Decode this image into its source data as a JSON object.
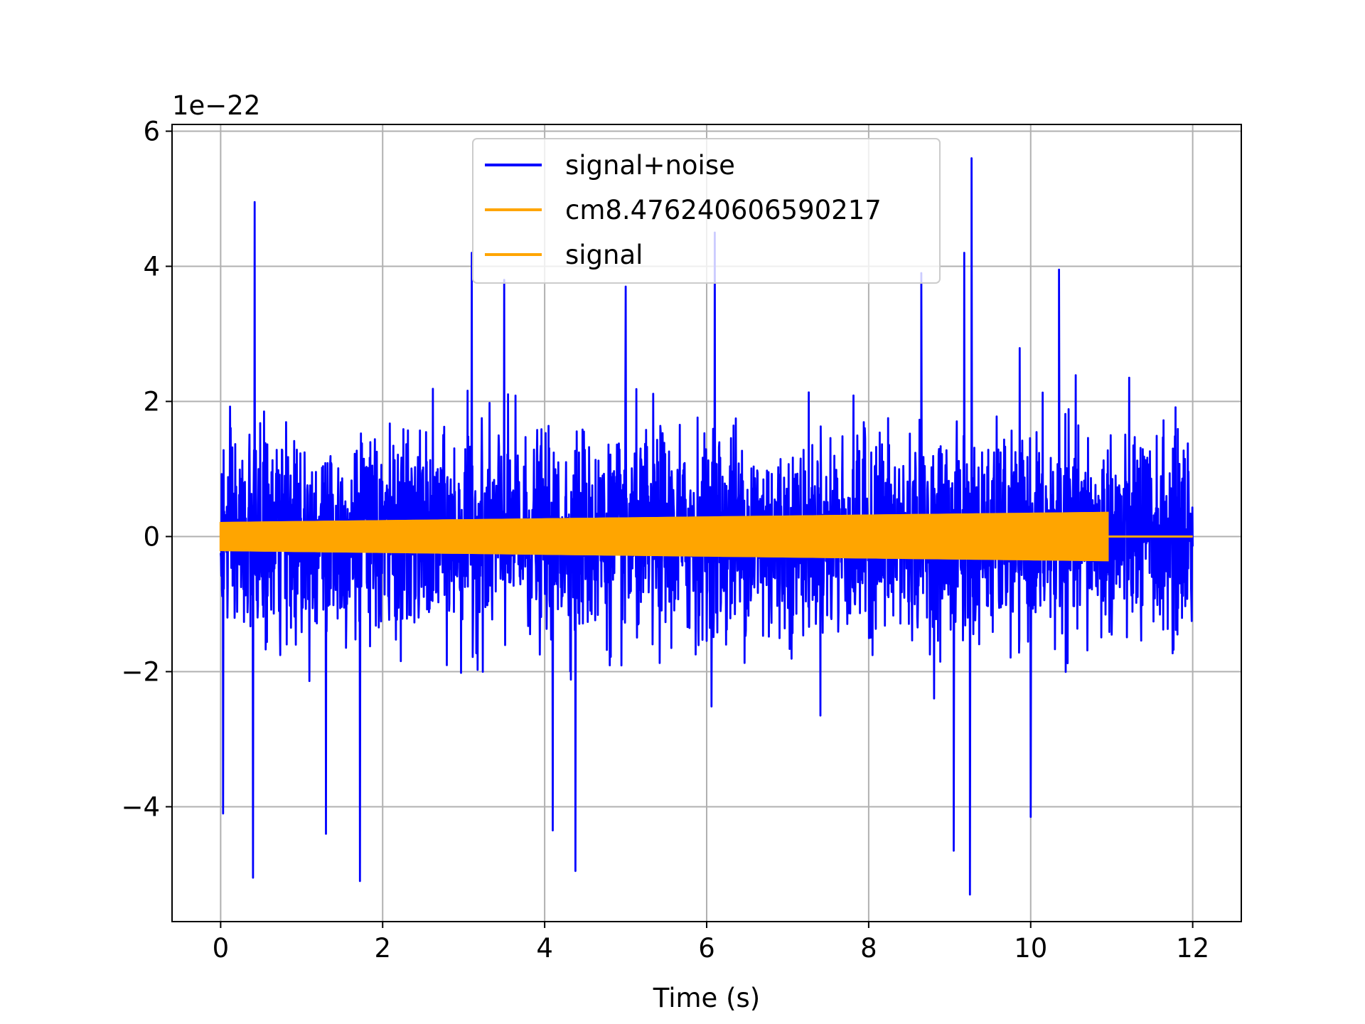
{
  "chart_data": {
    "type": "line",
    "title": "",
    "xlabel": "Time (s)",
    "ylabel": "",
    "y_offset_text": "1e−22",
    "xlim": [
      -0.6,
      12.6
    ],
    "ylim": [
      -5.7,
      6.1
    ],
    "y_scale_factor": 1e-22,
    "x_ticks": [
      0,
      2,
      4,
      6,
      8,
      10,
      12
    ],
    "x_tick_labels": [
      "0",
      "2",
      "4",
      "6",
      "8",
      "10",
      "12"
    ],
    "y_ticks": [
      -4,
      -2,
      0,
      2,
      4,
      6
    ],
    "y_tick_labels": [
      "−4",
      "−2",
      "0",
      "2",
      "4",
      "6"
    ],
    "grid": true,
    "legend_position": "upper center",
    "series": [
      {
        "name": "signal+noise",
        "color": "#0000ff",
        "kind": "noise",
        "x_range": [
          0,
          12
        ],
        "typical_amplitude": 1.3,
        "peaks": [
          {
            "x": 0.42,
            "y": 4.95
          },
          {
            "x": 0.4,
            "y": -5.05
          },
          {
            "x": 1.72,
            "y": -5.1
          },
          {
            "x": 6.1,
            "y": 4.5
          },
          {
            "x": 9.27,
            "y": 5.6
          },
          {
            "x": 9.25,
            "y": -5.3
          },
          {
            "x": 4.38,
            "y": -4.95
          },
          {
            "x": 0.03,
            "y": -4.1
          },
          {
            "x": 1.3,
            "y": -4.4
          },
          {
            "x": 4.1,
            "y": -4.35
          },
          {
            "x": 10.0,
            "y": -4.15
          },
          {
            "x": 9.05,
            "y": -4.65
          },
          {
            "x": 3.1,
            "y": 4.2
          },
          {
            "x": 9.18,
            "y": 4.2
          },
          {
            "x": 3.5,
            "y": 3.8
          },
          {
            "x": 5.0,
            "y": 3.7
          },
          {
            "x": 8.65,
            "y": 3.9
          },
          {
            "x": 10.35,
            "y": 3.95
          }
        ]
      },
      {
        "name": "cm8.476240606590217",
        "color": "#ffa500",
        "kind": "envelope",
        "x_range": [
          0,
          10.95
        ],
        "amplitude_start": 0.2,
        "amplitude_end": 0.35,
        "after_value": 0,
        "after_x_range": [
          10.95,
          12
        ]
      },
      {
        "name": "signal",
        "color": "#ffa500",
        "kind": "envelope",
        "x_range": [
          0,
          10.95
        ],
        "amplitude_start": 0.2,
        "amplitude_end": 0.35,
        "after_value": 0,
        "after_x_range": [
          10.95,
          12
        ]
      }
    ]
  }
}
